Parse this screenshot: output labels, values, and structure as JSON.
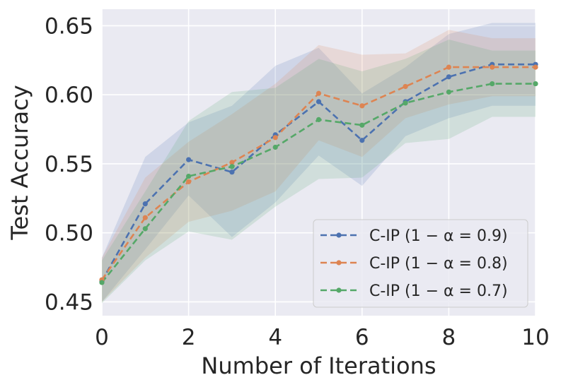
{
  "chart_data": {
    "type": "line",
    "title": "",
    "xlabel": "Number of Iterations",
    "ylabel": "Test Accuracy",
    "xlim": [
      0,
      10
    ],
    "ylim": [
      0.44,
      0.662
    ],
    "xticks": [
      0,
      2,
      4,
      6,
      8,
      10
    ],
    "xtick_labels": [
      "0",
      "2",
      "4",
      "6",
      "8",
      "10"
    ],
    "yticks": [
      0.45,
      0.5,
      0.55,
      0.6,
      0.65
    ],
    "ytick_labels": [
      "0.45",
      "0.50",
      "0.55",
      "0.60",
      "0.65"
    ],
    "grid": true,
    "legend_position": "bottom-right",
    "x": [
      0,
      1,
      2,
      3,
      4,
      5,
      6,
      7,
      8,
      9,
      10
    ],
    "series": [
      {
        "name": "C-IP (1 − α = 0.9)",
        "color": "#4c72b0",
        "values": [
          0.465,
          0.521,
          0.553,
          0.544,
          0.571,
          0.595,
          0.567,
          0.595,
          0.613,
          0.622,
          0.622
        ],
        "upper": [
          0.482,
          0.555,
          0.58,
          0.592,
          0.621,
          0.634,
          0.601,
          0.62,
          0.644,
          0.652,
          0.652
        ],
        "lower": [
          0.45,
          0.488,
          0.527,
          0.497,
          0.522,
          0.556,
          0.534,
          0.57,
          0.583,
          0.592,
          0.592
        ]
      },
      {
        "name": "C-IP (1 − α = 0.8)",
        "color": "#dd8452",
        "values": [
          0.466,
          0.511,
          0.537,
          0.551,
          0.569,
          0.601,
          0.592,
          0.606,
          0.62,
          0.62,
          0.62
        ],
        "upper": [
          0.482,
          0.54,
          0.566,
          0.586,
          0.608,
          0.636,
          0.629,
          0.63,
          0.647,
          0.641,
          0.641
        ],
        "lower": [
          0.45,
          0.482,
          0.508,
          0.516,
          0.53,
          0.567,
          0.555,
          0.583,
          0.593,
          0.599,
          0.599
        ]
      },
      {
        "name": "C-IP (1 − α = 0.7)",
        "color": "#55a868",
        "values": [
          0.464,
          0.503,
          0.541,
          0.548,
          0.562,
          0.582,
          0.578,
          0.594,
          0.602,
          0.608,
          0.608
        ],
        "upper": [
          0.48,
          0.53,
          0.581,
          0.602,
          0.605,
          0.626,
          0.617,
          0.626,
          0.64,
          0.632,
          0.632
        ],
        "lower": [
          0.449,
          0.48,
          0.501,
          0.495,
          0.519,
          0.539,
          0.54,
          0.565,
          0.568,
          0.584,
          0.584
        ]
      }
    ]
  }
}
